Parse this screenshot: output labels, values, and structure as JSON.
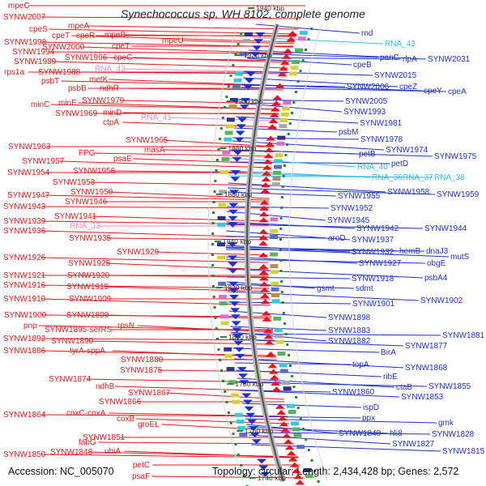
{
  "title": "Synechococcus sp. WH 8102, complete genome",
  "footer": {
    "accession": "Accession: NC_005070",
    "topology": "Topology: circular; Length: 2,434,428 bp; Genes: 2,572"
  },
  "colors": {
    "forward": "#e8161b",
    "reverse": "#1c2fd8",
    "rna": "#f08ad8",
    "rna_reverse": "#2bbfe6",
    "backbone": "#8c8c8c",
    "kbp_tick": "#1f8a2a"
  },
  "kbp_ticks": [
    "1940 kbp",
    "1920 kbp",
    "1900 kbp",
    "1880 kbp",
    "1860 kbp",
    "1840 kbp",
    "1820 kbp",
    "1800 kbp",
    "1780 kbp",
    "1760 kbp",
    "1740 kbp"
  ],
  "left_labels": [
    "mpeC",
    "SYNW2007",
    "mpeA",
    "cpeS",
    "cpeT",
    "cpeR",
    "mpeB",
    "mpeU",
    "SYNW1998",
    "SYNW2000",
    "cpeT",
    "SYNW1994",
    "SYNW1996",
    "cpeC",
    "SYNW1989",
    "rps1a",
    "SYNW1988",
    "RNA_42",
    "psbT",
    "metK",
    "psbB",
    "ndhR",
    "SYNW1979",
    "minC",
    "minE",
    "SYNW1969",
    "minD",
    "RNA_41",
    "ctpA",
    "SYNW1965",
    "SYNW1963",
    "masA",
    "FPG",
    "psaE",
    "SYNW1957",
    "SYNW1954",
    "SYNW1956",
    "SYNW1953",
    "SYNW1947",
    "SYNW1950",
    "SYNW1946",
    "SYNW1943",
    "SYNW1939",
    "SYNW1941",
    "SYNW1936",
    "RNA_33",
    "SYNW1935",
    "SYNW1929",
    "SYNW1926",
    "SYNW1925",
    "SYNW1921",
    "SYNW1920",
    "SYNW1916",
    "SYNW1915",
    "SYNW1910",
    "SYNW1909",
    "SYNW1900",
    "SYNW1899",
    "pnp",
    "rpsN",
    "SYNW1895-serRS",
    "SYNW1892",
    "SYNW1890",
    "SYNW1886",
    "tyrA-sppA",
    "SYNW1880",
    "SYNW1875",
    "SYNW1874",
    "ndhB",
    "SYNW1867",
    "SYNW1866",
    "SYNW1864",
    "coxC-coxA",
    "coxB",
    "groEL",
    "SYNW1851",
    "fabG",
    "SYNW1850",
    "SYNW1848",
    "ubiA",
    "petC",
    "psaF"
  ],
  "right_labels": [
    "rnd",
    "RNA_43",
    "panC",
    "rlpA",
    "SYNW2031",
    "cpeB",
    "SYNW2015",
    "SYNW2006",
    "cpeZ",
    "cpeY",
    "cpeA",
    "SYNW2005",
    "SYNW1993",
    "SYNW1981",
    "psbM",
    "SYNW1978",
    "SYNW1974",
    "SYNW1975",
    "petB",
    "petD",
    "RNA_40",
    "RNA_36",
    "RNA_37",
    "RNA_38",
    "SYNW1958",
    "SYNW1959",
    "SYNW1955",
    "SYNW1952",
    "SYNW1945",
    "SYNW1942",
    "SYNW1944",
    "aroD",
    "SYNW1937",
    "SYNW1932",
    "hemB",
    "dnaJ3",
    "mutS",
    "SYNW1927",
    "obgE",
    "SYNW1918",
    "psbA4",
    "gsmt",
    "sdmt",
    "SYNW1901",
    "SYNW1902",
    "SYNW1898",
    "SYNW1883",
    "SYNW1881",
    "SYNW1882",
    "SYNW1877",
    "BirA",
    "topA",
    "SYNW1868",
    "ribE",
    "SYNW1855",
    "SYNW1860",
    "ctaB",
    "SYNW1853",
    "ispD",
    "ppx",
    "SYNW1840",
    "hli8",
    "gmk",
    "SYNW1828",
    "SYNW1827",
    "SYNW1815"
  ]
}
